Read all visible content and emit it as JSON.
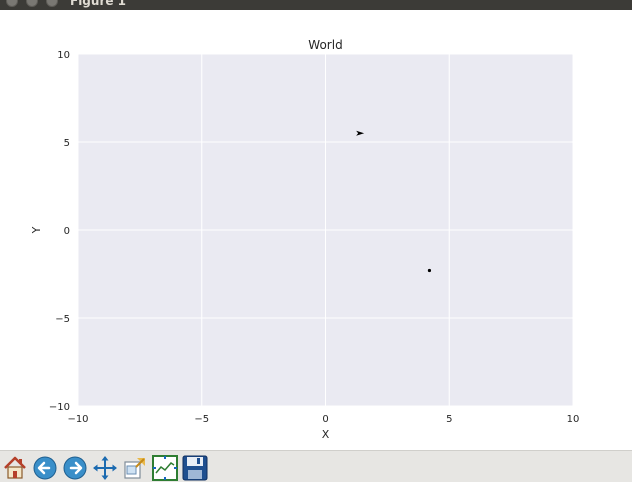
{
  "window": {
    "title": "Figure 1",
    "buttons": [
      "close",
      "minimize",
      "maximize"
    ]
  },
  "toolbar": {
    "items": [
      {
        "name": "home",
        "icon": "home-icon"
      },
      {
        "name": "back",
        "icon": "back-arrow-icon"
      },
      {
        "name": "forward",
        "icon": "forward-arrow-icon"
      },
      {
        "name": "pan",
        "icon": "pan-move-icon"
      },
      {
        "name": "zoom",
        "icon": "zoom-rect-icon"
      },
      {
        "name": "subplots",
        "icon": "subplots-config-icon"
      },
      {
        "name": "save",
        "icon": "save-disk-icon"
      }
    ]
  },
  "chart_data": {
    "type": "scatter",
    "title": "World",
    "xlabel": "X",
    "ylabel": "Y",
    "xlim": [
      -10,
      10
    ],
    "ylim": [
      -10,
      10
    ],
    "xticks": [
      -10,
      -5,
      0,
      5,
      10
    ],
    "yticks": [
      -10,
      -5,
      0,
      5,
      10
    ],
    "xtick_labels": [
      "−10",
      "−5",
      "0",
      "5",
      "10"
    ],
    "ytick_labels": [
      "−10",
      "−5",
      "0",
      "5",
      "10"
    ],
    "grid": true,
    "background": "#eaeaf2",
    "grid_color": "#ffffff",
    "series": [
      {
        "marker": "arrow",
        "color": "#000000",
        "points": [
          {
            "x": 1.4,
            "y": 5.5
          }
        ]
      },
      {
        "marker": "dot",
        "color": "#000000",
        "points": [
          {
            "x": 4.2,
            "y": -2.3
          }
        ]
      }
    ]
  }
}
